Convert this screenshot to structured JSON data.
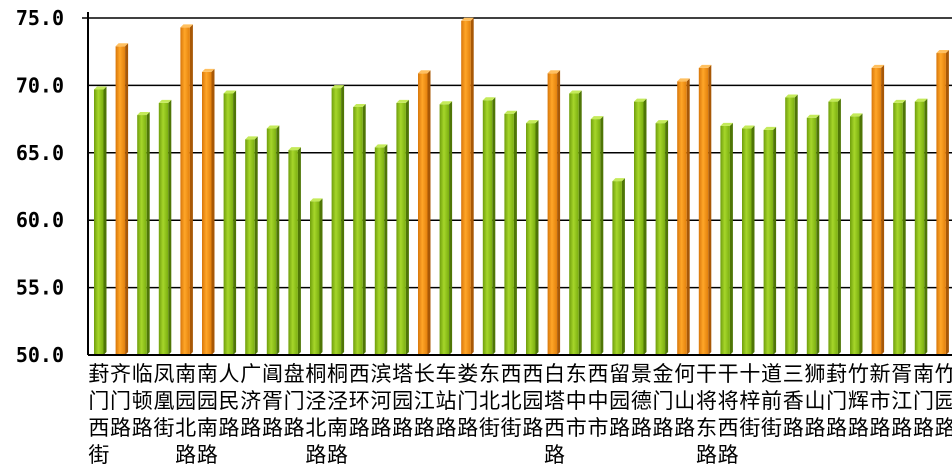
{
  "chart_data": {
    "type": "bar",
    "ylim": [
      50.0,
      75.0
    ],
    "yticks": [
      "50.0",
      "55.0",
      "60.0",
      "65.0",
      "70.0",
      "75.0"
    ],
    "grid": true,
    "colors": {
      "green": "#8cc21a",
      "orange": "#f08c10"
    },
    "categories": [
      "葑门西街",
      "齐门路",
      "临顿路",
      "凤凰街",
      "南园北路",
      "南园南路",
      "人民路",
      "广济路",
      "阊胥路",
      "盘门路",
      "桐泾北路",
      "桐泾南路",
      "西环路",
      "滨河路",
      "塔园路",
      "长江路",
      "车站路",
      "娄门路",
      "东北街",
      "西北街",
      "西园路",
      "白塔西路",
      "东中市",
      "西中市",
      "留园路",
      "景德路",
      "金门路",
      "何山路",
      "干将东路",
      "干将西路",
      "十梓街",
      "道前街",
      "三香路",
      "狮山路",
      "葑门路",
      "竹辉路",
      "新市路",
      "胥江路",
      "南门路",
      "竹园路"
    ],
    "values": [
      69.7,
      72.9,
      67.8,
      68.7,
      74.3,
      71.0,
      69.4,
      66.0,
      66.8,
      65.2,
      61.4,
      69.8,
      68.4,
      65.4,
      68.7,
      70.9,
      68.6,
      74.8,
      68.9,
      67.9,
      67.2,
      70.9,
      69.4,
      67.5,
      62.9,
      68.8,
      67.2,
      70.3,
      71.3,
      67.0,
      66.8,
      66.7,
      69.1,
      67.6,
      68.8,
      67.7,
      71.3,
      68.7,
      68.8,
      72.4
    ],
    "highlight": [
      false,
      true,
      false,
      false,
      true,
      true,
      false,
      false,
      false,
      false,
      false,
      false,
      false,
      false,
      false,
      true,
      false,
      true,
      false,
      false,
      false,
      true,
      false,
      false,
      false,
      false,
      false,
      true,
      true,
      false,
      false,
      false,
      false,
      false,
      false,
      false,
      true,
      false,
      false,
      true
    ]
  }
}
